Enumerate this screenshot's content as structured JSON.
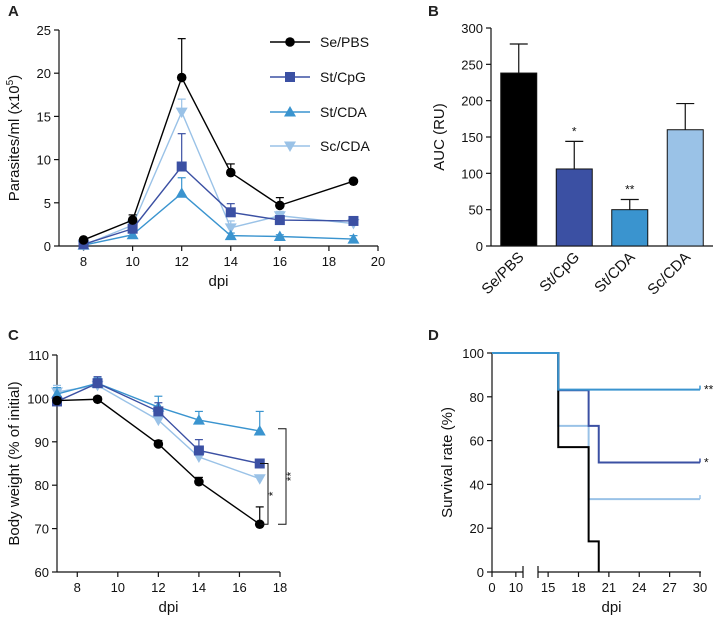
{
  "colors": {
    "Se/PBS": "#000000",
    "St/CpG": "#3b50a3",
    "St/CDA": "#3a94cf",
    "Sc/CDA": "#9ac2e7"
  },
  "chart_data": [
    {
      "panel": "A",
      "type": "line",
      "xlabel": "dpi",
      "ylabel": "Parasites/ml (x10",
      "ylabel_sup": "5",
      "ylabel_end": ")",
      "xlim": [
        7,
        20
      ],
      "ylim": [
        0,
        25
      ],
      "xticks": [
        8,
        10,
        12,
        14,
        16,
        18,
        20
      ],
      "yticks": [
        0,
        5,
        10,
        15,
        20,
        25
      ],
      "series": [
        {
          "name": "Se/PBS",
          "marker": "circle",
          "x": [
            8,
            10,
            12,
            14,
            16,
            19
          ],
          "values": [
            0.7,
            3.0,
            19.5,
            8.5,
            4.7,
            7.5
          ],
          "err": [
            0.2,
            0.6,
            4.5,
            1.0,
            0.9,
            0.2
          ]
        },
        {
          "name": "St/CpG",
          "marker": "square",
          "x": [
            8,
            10,
            12,
            14,
            16,
            19
          ],
          "values": [
            0.2,
            2.0,
            9.2,
            3.9,
            3.0,
            2.9
          ],
          "err": [
            0.1,
            0.5,
            3.8,
            1.0,
            0.5,
            0.5
          ]
        },
        {
          "name": "St/CDA",
          "marker": "triangle",
          "x": [
            8,
            10,
            12,
            14,
            16,
            19
          ],
          "values": [
            0.1,
            1.3,
            6.1,
            1.2,
            1.1,
            0.8
          ],
          "err": [
            0.1,
            0.4,
            1.8,
            0.3,
            0.2,
            0.4
          ]
        },
        {
          "name": "Sc/CDA",
          "marker": "triangle-down",
          "x": [
            8,
            10,
            12,
            14,
            16,
            19
          ],
          "values": [
            0.1,
            2.4,
            15.5,
            2.1,
            3.5,
            2.6
          ],
          "err": [
            0.1,
            0.6,
            1.5,
            0.8,
            0.5,
            0.6
          ]
        }
      ]
    },
    {
      "panel": "B",
      "type": "bar",
      "ylabel": "AUC (RU)",
      "ylim": [
        0,
        300
      ],
      "yticks": [
        0,
        50,
        100,
        150,
        200,
        250,
        300
      ],
      "categories": [
        "Se/PBS",
        "St/CpG",
        "St/CDA",
        "Sc/CDA"
      ],
      "values": [
        238,
        106,
        50,
        160
      ],
      "err": [
        40,
        38,
        14,
        36
      ],
      "annotations": [
        "",
        "*",
        "**",
        ""
      ]
    },
    {
      "panel": "C",
      "type": "line",
      "xlabel": "dpi",
      "ylabel": "Body weight (% of initial)",
      "xlim": [
        7,
        18
      ],
      "ylim": [
        60,
        110
      ],
      "xticks": [
        8,
        10,
        12,
        14,
        16,
        18
      ],
      "yticks": [
        60,
        70,
        80,
        90,
        100,
        110
      ],
      "series": [
        {
          "name": "Se/PBS",
          "marker": "circle",
          "x": [
            7,
            9,
            12,
            14,
            17
          ],
          "values": [
            99.5,
            99.8,
            89.5,
            80.8,
            71.0
          ],
          "err": [
            0.5,
            0.6,
            0.8,
            1.0,
            4.0
          ]
        },
        {
          "name": "St/CpG",
          "marker": "square",
          "x": [
            7,
            9,
            12,
            14,
            17
          ],
          "values": [
            99.3,
            103.5,
            97.0,
            88.0,
            85.0
          ],
          "err": [
            1.0,
            1.5,
            2.0,
            2.5,
            0.6
          ]
        },
        {
          "name": "St/CDA",
          "marker": "triangle",
          "x": [
            7,
            9,
            12,
            14,
            17
          ],
          "values": [
            101.0,
            103.5,
            98.0,
            95.0,
            92.5
          ],
          "err": [
            1.5,
            1.2,
            2.5,
            2.0,
            4.5
          ]
        },
        {
          "name": "Sc/CDA",
          "marker": "triangle-down",
          "x": [
            7,
            9,
            12,
            14,
            17
          ],
          "values": [
            101.5,
            103.0,
            95.0,
            86.5,
            81.5
          ],
          "err": [
            1.5,
            1.5,
            2.0,
            1.5,
            0.6
          ]
        }
      ],
      "brackets": [
        {
          "label": "*",
          "from": 71.0,
          "to": 85.0
        },
        {
          "label": "**",
          "from": 71.0,
          "to": 93.0
        }
      ]
    },
    {
      "panel": "D",
      "type": "line",
      "step": true,
      "xlabel": "dpi",
      "ylabel": "Survival rate (%)",
      "ylim": [
        0,
        100
      ],
      "yticks": [
        0,
        20,
        40,
        60,
        80,
        100
      ],
      "xticks": [
        0,
        10,
        15,
        18,
        21,
        24,
        27,
        30
      ],
      "axis_break": true,
      "series": [
        {
          "name": "Se/PBS",
          "points": [
            [
              0,
              100
            ],
            [
              16,
              100
            ],
            [
              16,
              57
            ],
            [
              19,
              57
            ],
            [
              19,
              14
            ],
            [
              20,
              14
            ],
            [
              20,
              0
            ]
          ]
        },
        {
          "name": "St/CpG",
          "points": [
            [
              0,
              100
            ],
            [
              16,
              100
            ],
            [
              16,
              83
            ],
            [
              19,
              83
            ],
            [
              19,
              66.7
            ],
            [
              20,
              66.7
            ],
            [
              20,
              50
            ],
            [
              30,
              50
            ]
          ]
        },
        {
          "name": "St/CDA",
          "points": [
            [
              0,
              100
            ],
            [
              16,
              100
            ],
            [
              16,
              83.3
            ],
            [
              30,
              83.3
            ]
          ]
        },
        {
          "name": "Sc/CDA",
          "points": [
            [
              0,
              100
            ],
            [
              16,
              100
            ],
            [
              16,
              66.7
            ],
            [
              19,
              66.7
            ],
            [
              19,
              33.3
            ],
            [
              30,
              33.3
            ]
          ]
        }
      ],
      "annotations": [
        {
          "series": "St/CDA",
          "label": "**"
        },
        {
          "series": "St/CpG",
          "label": "*"
        }
      ]
    }
  ]
}
